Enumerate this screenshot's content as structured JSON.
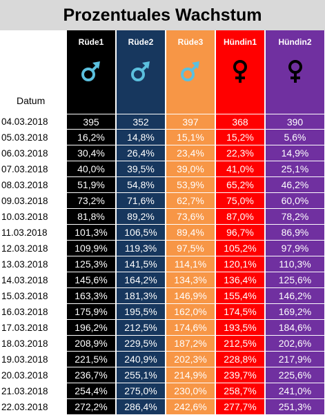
{
  "title": "Prozentuales Wachstum",
  "datum_label": "Datum",
  "dates": [
    "04.03.2018",
    "05.03.2018",
    "06.03.2018",
    "07.03.2018",
    "08.03.2018",
    "09.03.2018",
    "10.03.2018",
    "11.03.2018",
    "12.03.2018",
    "13.03.2018",
    "14.03.2018",
    "15.03.2018",
    "16.03.2018",
    "17.03.2018",
    "18.03.2018",
    "19.03.2018",
    "20.03.2018",
    "21.03.2018",
    "22.03.2018"
  ],
  "columns": [
    {
      "name": "Rüde1",
      "color": "#000000",
      "icon": "male-symbol-icon",
      "icon_color": "#5bc0de",
      "values": [
        "395",
        "16,2%",
        "30,4%",
        "40,0%",
        "51,9%",
        "73,2%",
        "81,8%",
        "101,3%",
        "109,9%",
        "125,3%",
        "145,6%",
        "163,3%",
        "175,9%",
        "196,2%",
        "208,9%",
        "221,5%",
        "236,7%",
        "254,4%",
        "272,2%"
      ]
    },
    {
      "name": "Rüde2",
      "color": "#17375e",
      "icon": "male-symbol-icon",
      "icon_color": "#5bc0de",
      "values": [
        "352",
        "14,8%",
        "26,4%",
        "39,5%",
        "54,8%",
        "71,6%",
        "89,2%",
        "106,5%",
        "119,3%",
        "141,5%",
        "164,2%",
        "181,3%",
        "195,5%",
        "212,5%",
        "229,5%",
        "240,9%",
        "255,1%",
        "275,0%",
        "286,4%"
      ]
    },
    {
      "name": "Rüde3",
      "color": "#f79646",
      "icon": "male-symbol-icon",
      "icon_color": "#5bc0de",
      "values": [
        "397",
        "15,1%",
        "23,4%",
        "39,0%",
        "53,9%",
        "62,7%",
        "73,6%",
        "89,4%",
        "97,5%",
        "114,1%",
        "134,3%",
        "146,9%",
        "162,0%",
        "174,6%",
        "187,2%",
        "202,3%",
        "214,9%",
        "230,0%",
        "242,6%"
      ]
    },
    {
      "name": "Hündin1",
      "color": "#ff0000",
      "icon": "female-symbol-icon",
      "icon_color": "#000000",
      "values": [
        "368",
        "15,2%",
        "22,3%",
        "41,0%",
        "65,2%",
        "75,0%",
        "87,0%",
        "96,7%",
        "105,2%",
        "120,1%",
        "136,4%",
        "155,4%",
        "174,5%",
        "193,5%",
        "212,5%",
        "228,8%",
        "239,7%",
        "258,7%",
        "277,7%"
      ]
    },
    {
      "name": "Hündin2",
      "color": "#7030a0",
      "icon": "female-symbol-icon",
      "icon_color": "#000000",
      "values": [
        "390",
        "5,6%",
        "14,9%",
        "25,1%",
        "46,2%",
        "60,0%",
        "78,2%",
        "86,9%",
        "97,9%",
        "110,3%",
        "125,6%",
        "146,2%",
        "169,2%",
        "184,6%",
        "202,6%",
        "217,9%",
        "225,6%",
        "241,0%",
        "251,3%"
      ]
    }
  ]
}
